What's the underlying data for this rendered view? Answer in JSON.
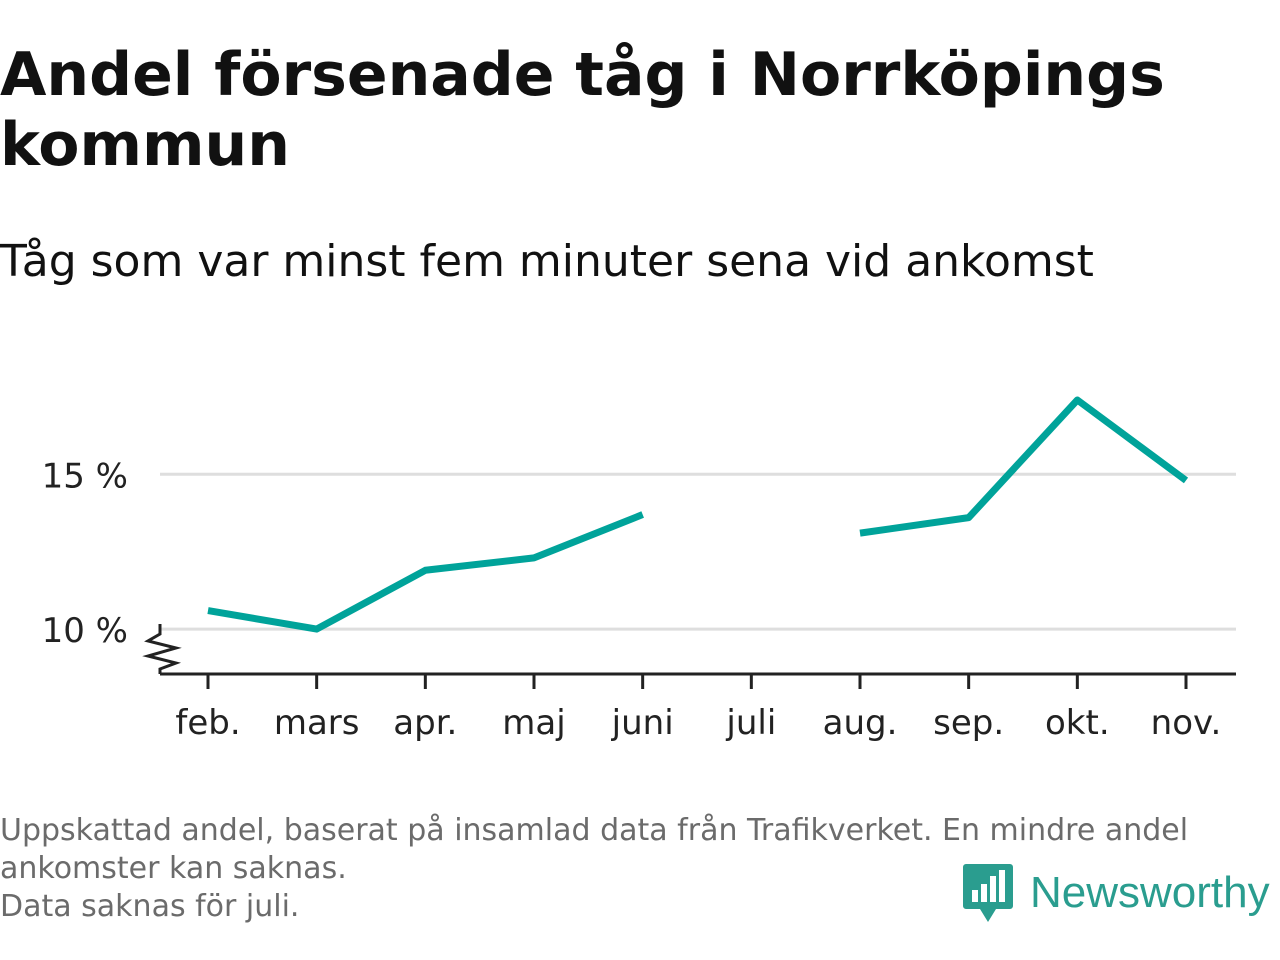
{
  "title": "Andel försenade tåg i Norrköpings kommun",
  "subtitle": "Tåg som var minst fem minuter sena vid ankomst",
  "footer": {
    "line1": "Uppskattad andel, baserat på insamlad data från Trafikverket. En mindre andel",
    "line2": "ankomster kan saknas.",
    "line3": "Data saknas för juli."
  },
  "brand": {
    "name": "Newsworthy",
    "icon": "newsworthy-logo-icon",
    "color": "#2a9d8f"
  },
  "chart_data": {
    "type": "line",
    "title": "Andel försenade tåg i Norrköpings kommun",
    "subtitle": "Tåg som var minst fem minuter sena vid ankomst",
    "xlabel": "",
    "ylabel": "",
    "categories": [
      "feb.",
      "mars",
      "apr.",
      "maj",
      "juni",
      "juli",
      "aug.",
      "sep.",
      "okt.",
      "nov."
    ],
    "series": [
      {
        "values": [
          10.6,
          10.0,
          11.9,
          12.3,
          13.7,
          null,
          13.1,
          13.6,
          17.4,
          14.8
        ],
        "color": "#00a39a"
      }
    ],
    "y_ticks": [
      10,
      15
    ],
    "y_tick_labels": [
      "10 %",
      "15 %"
    ],
    "ylim": [
      8.55,
      17.4
    ],
    "y_axis_break": true,
    "grid": true,
    "legend": "none"
  }
}
